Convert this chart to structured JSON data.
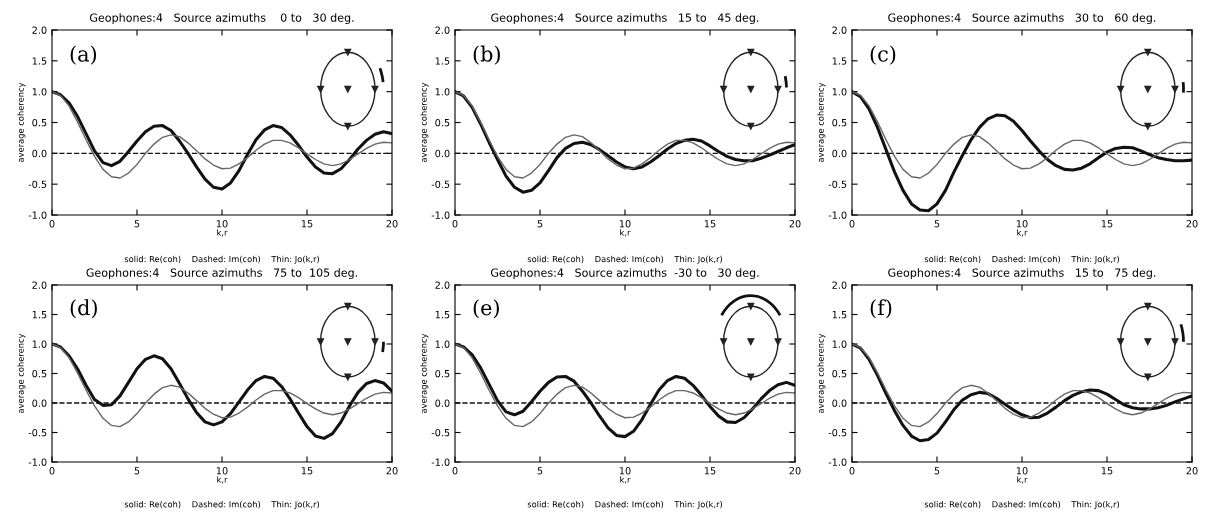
{
  "chart_data": [
    {
      "type": "line",
      "title": "Geophones:4   Source azimuths    0 to   30 deg.",
      "xlabel": "k,r",
      "ylabel": "average coherency",
      "annotations": [
        "(a)",
        "solid: Re(coh)    Dashed: Im(coh)    Thin: Jo(k,r)"
      ],
      "xlim": [
        0,
        20
      ],
      "ylim": [
        -1.0,
        2.0
      ],
      "xticks": [
        0,
        5,
        10,
        15,
        20
      ],
      "yticks": [
        {
          "value": -1.0,
          "label": "-1.0"
        },
        {
          "value": -0.5,
          "label": "-0.5"
        },
        {
          "value": 0.0,
          "label": "0.0"
        },
        {
          "value": 0.5,
          "label": "0.5"
        },
        {
          "value": 1.0,
          "label": "1.0"
        },
        {
          "value": 1.5,
          "label": "1.5"
        },
        {
          "value": 2.0,
          "label": "2.0"
        }
      ],
      "grid": false,
      "legend": false,
      "x": [
        0,
        0.5,
        1,
        1.5,
        2,
        2.5,
        3,
        3.5,
        4,
        4.5,
        5,
        5.5,
        6,
        6.5,
        7,
        7.5,
        8,
        8.5,
        9,
        9.5,
        10,
        10.5,
        11,
        11.5,
        12,
        12.5,
        13,
        13.5,
        14,
        14.5,
        15,
        15.5,
        16,
        16.5,
        17,
        17.5,
        18,
        18.5,
        19,
        19.5,
        20
      ],
      "series": [
        {
          "color": "#111111",
          "line_style": "solid",
          "values": [
            1.0,
            0.95,
            0.82,
            0.6,
            0.32,
            0.04,
            -0.15,
            -0.2,
            -0.13,
            0.03,
            0.2,
            0.35,
            0.44,
            0.45,
            0.37,
            0.2,
            0.0,
            -0.22,
            -0.42,
            -0.55,
            -0.58,
            -0.48,
            -0.28,
            -0.02,
            0.22,
            0.38,
            0.45,
            0.42,
            0.3,
            0.13,
            -0.06,
            -0.22,
            -0.32,
            -0.33,
            -0.25,
            -0.1,
            0.07,
            0.21,
            0.31,
            0.35,
            0.32
          ]
        },
        {
          "color": "#111111",
          "line_style": "dashed",
          "values": [
            0,
            0,
            0,
            0,
            0,
            0,
            0,
            0,
            0,
            0,
            0,
            0,
            0,
            0,
            0,
            0,
            0,
            0,
            0,
            0,
            0,
            0,
            0,
            0,
            0,
            0,
            0,
            0,
            0,
            0,
            0,
            0,
            0,
            0,
            0,
            0,
            0,
            0,
            0,
            0,
            0
          ]
        },
        {
          "color": "#666666",
          "line_style": "solid",
          "values": [
            1.0,
            0.94,
            0.77,
            0.51,
            0.22,
            -0.05,
            -0.26,
            -0.38,
            -0.4,
            -0.32,
            -0.18,
            0.0,
            0.15,
            0.26,
            0.3,
            0.27,
            0.17,
            0.04,
            -0.09,
            -0.19,
            -0.25,
            -0.24,
            -0.17,
            -0.07,
            0.05,
            0.15,
            0.21,
            0.21,
            0.17,
            0.09,
            -0.01,
            -0.1,
            -0.17,
            -0.2,
            -0.17,
            -0.1,
            -0.01,
            0.08,
            0.15,
            0.18,
            0.17
          ]
        }
      ]
    },
    {
      "type": "line",
      "title": "Geophones:4   Source azimuths   15 to   45 deg.",
      "xlabel": "k,r",
      "ylabel": "average coherency",
      "annotations": [
        "(b)",
        "solid: Re(coh)    Dashed: Im(coh)    Thin: Jo(k,r)"
      ],
      "xlim": [
        0,
        20
      ],
      "ylim": [
        -1.0,
        2.0
      ],
      "xticks": [
        0,
        5,
        10,
        15,
        20
      ],
      "yticks": [
        {
          "value": -1.0,
          "label": "-1.0"
        },
        {
          "value": -0.5,
          "label": "-0.5"
        },
        {
          "value": 0.0,
          "label": "0.0"
        },
        {
          "value": 0.5,
          "label": "0.5"
        },
        {
          "value": 1.0,
          "label": "1.0"
        },
        {
          "value": 1.5,
          "label": "1.5"
        },
        {
          "value": 2.0,
          "label": "2.0"
        }
      ],
      "grid": false,
      "legend": false,
      "x": [
        0,
        0.5,
        1,
        1.5,
        2,
        2.5,
        3,
        3.5,
        4,
        4.5,
        5,
        5.5,
        6,
        6.5,
        7,
        7.5,
        8,
        8.5,
        9,
        9.5,
        10,
        10.5,
        11,
        11.5,
        12,
        12.5,
        13,
        13.5,
        14,
        14.5,
        15,
        15.5,
        16,
        16.5,
        17,
        17.5,
        18,
        18.5,
        19,
        19.5,
        20
      ],
      "series": [
        {
          "color": "#111111",
          "line_style": "solid",
          "values": [
            1.0,
            0.93,
            0.75,
            0.48,
            0.18,
            -0.1,
            -0.37,
            -0.55,
            -0.63,
            -0.6,
            -0.48,
            -0.28,
            -0.07,
            0.08,
            0.16,
            0.18,
            0.14,
            0.06,
            -0.04,
            -0.14,
            -0.22,
            -0.25,
            -0.22,
            -0.14,
            -0.04,
            0.07,
            0.16,
            0.21,
            0.23,
            0.2,
            0.12,
            0.03,
            -0.05,
            -0.1,
            -0.12,
            -0.12,
            -0.08,
            -0.03,
            0.03,
            0.09,
            0.14
          ]
        },
        {
          "color": "#111111",
          "line_style": "dashed",
          "values": [
            0,
            0,
            0,
            0,
            0,
            0,
            0,
            0,
            0,
            0,
            0,
            0,
            0,
            0,
            0,
            0,
            0,
            0,
            0,
            0,
            0,
            0,
            0,
            0,
            0,
            0,
            0,
            0,
            0,
            0,
            0,
            0,
            0,
            0,
            0,
            0,
            0,
            0,
            0,
            0,
            0
          ]
        },
        {
          "color": "#666666",
          "line_style": "solid",
          "values": [
            1.0,
            0.94,
            0.77,
            0.51,
            0.22,
            -0.05,
            -0.26,
            -0.38,
            -0.4,
            -0.32,
            -0.18,
            0.0,
            0.15,
            0.26,
            0.3,
            0.27,
            0.17,
            0.04,
            -0.09,
            -0.19,
            -0.25,
            -0.24,
            -0.17,
            -0.07,
            0.05,
            0.15,
            0.21,
            0.21,
            0.17,
            0.09,
            -0.01,
            -0.1,
            -0.17,
            -0.2,
            -0.17,
            -0.1,
            -0.01,
            0.08,
            0.15,
            0.18,
            0.17
          ]
        }
      ]
    },
    {
      "type": "line",
      "title": "Geophones:4   Source azimuths   30 to   60 deg.",
      "xlabel": "k,r",
      "ylabel": "average coherency",
      "annotations": [
        "(c)",
        "solid: Re(coh)    Dashed: Im(coh)    Thin: Jo(k,r)"
      ],
      "xlim": [
        0,
        20
      ],
      "ylim": [
        -1.0,
        2.0
      ],
      "xticks": [
        0,
        5,
        10,
        15,
        20
      ],
      "yticks": [
        {
          "value": -1.0,
          "label": "-1.0"
        },
        {
          "value": -0.5,
          "label": "-0.5"
        },
        {
          "value": 0.0,
          "label": "0.0"
        },
        {
          "value": 0.5,
          "label": "0.5"
        },
        {
          "value": 1.0,
          "label": "1.0"
        },
        {
          "value": 1.5,
          "label": "1.5"
        },
        {
          "value": 2.0,
          "label": "2.0"
        }
      ],
      "grid": false,
      "legend": false,
      "x": [
        0,
        0.5,
        1,
        1.5,
        2,
        2.5,
        3,
        3.5,
        4,
        4.5,
        5,
        5.5,
        6,
        6.5,
        7,
        7.5,
        8,
        8.5,
        9,
        9.5,
        10,
        10.5,
        11,
        11.5,
        12,
        12.5,
        13,
        13.5,
        14,
        14.5,
        15,
        15.5,
        16,
        16.5,
        17,
        17.5,
        18,
        18.5,
        19,
        19.5,
        20
      ],
      "series": [
        {
          "color": "#111111",
          "line_style": "solid",
          "values": [
            1.0,
            0.92,
            0.72,
            0.42,
            0.06,
            -0.3,
            -0.6,
            -0.82,
            -0.92,
            -0.93,
            -0.82,
            -0.6,
            -0.3,
            -0.03,
            0.22,
            0.42,
            0.56,
            0.62,
            0.61,
            0.52,
            0.37,
            0.2,
            0.04,
            -0.1,
            -0.2,
            -0.26,
            -0.27,
            -0.24,
            -0.17,
            -0.07,
            0.02,
            0.08,
            0.1,
            0.09,
            0.04,
            -0.02,
            -0.07,
            -0.1,
            -0.12,
            -0.12,
            -0.11
          ]
        },
        {
          "color": "#111111",
          "line_style": "dashed",
          "values": [
            0,
            0,
            0,
            0,
            0,
            0,
            0,
            0,
            0,
            0,
            0,
            0,
            0,
            0,
            0,
            0,
            0,
            0,
            0,
            0,
            0,
            0,
            0,
            0,
            0,
            0,
            0,
            0,
            0,
            0,
            0,
            0,
            0,
            0,
            0,
            0,
            0,
            0,
            0,
            0,
            0
          ]
        },
        {
          "color": "#666666",
          "line_style": "solid",
          "values": [
            1.0,
            0.94,
            0.77,
            0.51,
            0.22,
            -0.05,
            -0.26,
            -0.38,
            -0.4,
            -0.32,
            -0.18,
            0.0,
            0.15,
            0.26,
            0.3,
            0.27,
            0.17,
            0.04,
            -0.09,
            -0.19,
            -0.25,
            -0.24,
            -0.17,
            -0.07,
            0.05,
            0.15,
            0.21,
            0.21,
            0.17,
            0.09,
            -0.01,
            -0.1,
            -0.17,
            -0.2,
            -0.17,
            -0.1,
            -0.01,
            0.08,
            0.15,
            0.18,
            0.17
          ]
        }
      ]
    },
    {
      "type": "line",
      "title": "Geophones:4   Source azimuths   75 to  105 deg.",
      "xlabel": "k,r",
      "ylabel": "average coherency",
      "annotations": [
        "(d)",
        "solid: Re(coh)    Dashed: Im(coh)    Thin: Jo(k,r)"
      ],
      "xlim": [
        0,
        20
      ],
      "ylim": [
        -1.0,
        2.0
      ],
      "xticks": [
        0,
        5,
        10,
        15,
        20
      ],
      "yticks": [
        {
          "value": -1.0,
          "label": "-1.0"
        },
        {
          "value": -0.5,
          "label": "-0.5"
        },
        {
          "value": 0.0,
          "label": "0.0"
        },
        {
          "value": 0.5,
          "label": "0.5"
        },
        {
          "value": 1.0,
          "label": "1.0"
        },
        {
          "value": 1.5,
          "label": "1.5"
        },
        {
          "value": 2.0,
          "label": "2.0"
        }
      ],
      "grid": false,
      "legend": false,
      "x": [
        0,
        0.5,
        1,
        1.5,
        2,
        2.5,
        3,
        3.5,
        4,
        4.5,
        5,
        5.5,
        6,
        6.5,
        7,
        7.5,
        8,
        8.5,
        9,
        9.5,
        10,
        10.5,
        11,
        11.5,
        12,
        12.5,
        13,
        13.5,
        14,
        14.5,
        15,
        15.5,
        16,
        16.5,
        17,
        17.5,
        18,
        18.5,
        19,
        19.5,
        20
      ],
      "series": [
        {
          "color": "#111111",
          "line_style": "solid",
          "values": [
            1.0,
            0.95,
            0.8,
            0.58,
            0.3,
            0.06,
            -0.04,
            -0.03,
            0.12,
            0.35,
            0.58,
            0.74,
            0.8,
            0.75,
            0.58,
            0.33,
            0.07,
            -0.16,
            -0.32,
            -0.37,
            -0.32,
            -0.18,
            0.02,
            0.22,
            0.38,
            0.45,
            0.42,
            0.28,
            0.07,
            -0.17,
            -0.4,
            -0.56,
            -0.6,
            -0.52,
            -0.32,
            -0.05,
            0.18,
            0.33,
            0.38,
            0.34,
            0.2
          ]
        },
        {
          "color": "#111111",
          "line_style": "dashed",
          "values": [
            0,
            0,
            0,
            0,
            0,
            0,
            0,
            0,
            0,
            0,
            0,
            0,
            0,
            0,
            0,
            0,
            0,
            0,
            0,
            0,
            0,
            0,
            0,
            0,
            0,
            0,
            0,
            0,
            0,
            0,
            0,
            0,
            0,
            0,
            0,
            0,
            0,
            0,
            0,
            0,
            0
          ]
        },
        {
          "color": "#666666",
          "line_style": "solid",
          "values": [
            1.0,
            0.94,
            0.77,
            0.51,
            0.22,
            -0.05,
            -0.26,
            -0.38,
            -0.4,
            -0.32,
            -0.18,
            0.0,
            0.15,
            0.26,
            0.3,
            0.27,
            0.17,
            0.04,
            -0.09,
            -0.19,
            -0.25,
            -0.24,
            -0.17,
            -0.07,
            0.05,
            0.15,
            0.21,
            0.21,
            0.17,
            0.09,
            -0.01,
            -0.1,
            -0.17,
            -0.2,
            -0.17,
            -0.1,
            -0.01,
            0.08,
            0.15,
            0.18,
            0.17
          ]
        }
      ]
    },
    {
      "type": "line",
      "title": "Geophones:4   Source azimuths  -30 to   30 deg.",
      "xlabel": "k,r",
      "ylabel": "average coherency",
      "annotations": [
        "(e)",
        "solid: Re(coh)    Dashed: Im(coh)    Thin: Jo(k,r)"
      ],
      "xlim": [
        0,
        20
      ],
      "ylim": [
        -1.0,
        2.0
      ],
      "xticks": [
        0,
        5,
        10,
        15,
        20
      ],
      "yticks": [
        {
          "value": -1.0,
          "label": "-1.0"
        },
        {
          "value": -0.5,
          "label": "-0.5"
        },
        {
          "value": 0.0,
          "label": "0.0"
        },
        {
          "value": 0.5,
          "label": "0.5"
        },
        {
          "value": 1.0,
          "label": "1.0"
        },
        {
          "value": 1.5,
          "label": "1.5"
        },
        {
          "value": 2.0,
          "label": "2.0"
        }
      ],
      "grid": false,
      "legend": false,
      "x": [
        0,
        0.5,
        1,
        1.5,
        2,
        2.5,
        3,
        3.5,
        4,
        4.5,
        5,
        5.5,
        6,
        6.5,
        7,
        7.5,
        8,
        8.5,
        9,
        9.5,
        10,
        10.5,
        11,
        11.5,
        12,
        12.5,
        13,
        13.5,
        14,
        14.5,
        15,
        15.5,
        16,
        16.5,
        17,
        17.5,
        18,
        18.5,
        19,
        19.5,
        20
      ],
      "series": [
        {
          "color": "#111111",
          "line_style": "solid",
          "values": [
            1.0,
            0.95,
            0.82,
            0.6,
            0.32,
            0.04,
            -0.15,
            -0.2,
            -0.14,
            0.02,
            0.2,
            0.35,
            0.44,
            0.45,
            0.37,
            0.2,
            0.0,
            -0.22,
            -0.42,
            -0.55,
            -0.57,
            -0.48,
            -0.28,
            -0.02,
            0.22,
            0.38,
            0.45,
            0.42,
            0.3,
            0.13,
            -0.06,
            -0.22,
            -0.32,
            -0.33,
            -0.25,
            -0.1,
            0.07,
            0.21,
            0.31,
            0.35,
            0.3
          ]
        },
        {
          "color": "#111111",
          "line_style": "dashed",
          "values": [
            0,
            0,
            0,
            0,
            0,
            0,
            0,
            0,
            0,
            0,
            0,
            0,
            0,
            0,
            0,
            0,
            0,
            0,
            0,
            0,
            0,
            0,
            0,
            0,
            0,
            0,
            0,
            0,
            0,
            0,
            0,
            0,
            0,
            0,
            0,
            0,
            0,
            0,
            0,
            0,
            0
          ]
        },
        {
          "color": "#666666",
          "line_style": "solid",
          "values": [
            1.0,
            0.94,
            0.77,
            0.51,
            0.22,
            -0.05,
            -0.26,
            -0.38,
            -0.4,
            -0.32,
            -0.18,
            0.0,
            0.15,
            0.26,
            0.3,
            0.27,
            0.17,
            0.04,
            -0.09,
            -0.19,
            -0.25,
            -0.24,
            -0.17,
            -0.07,
            0.05,
            0.15,
            0.21,
            0.21,
            0.17,
            0.09,
            -0.01,
            -0.1,
            -0.17,
            -0.2,
            -0.17,
            -0.1,
            -0.01,
            0.08,
            0.15,
            0.18,
            0.17
          ]
        }
      ]
    },
    {
      "type": "line",
      "title": "Geophones:4   Source azimuths   15 to   75 deg.",
      "xlabel": "k,r",
      "ylabel": "average coherency",
      "annotations": [
        "(f)",
        "solid: Re(coh)    Dashed: Im(coh)    Thin: Jo(k,r)"
      ],
      "xlim": [
        0,
        20
      ],
      "ylim": [
        -1.0,
        2.0
      ],
      "xticks": [
        0,
        5,
        10,
        15,
        20
      ],
      "yticks": [
        {
          "value": -1.0,
          "label": "-1.0"
        },
        {
          "value": -0.5,
          "label": "-0.5"
        },
        {
          "value": 0.0,
          "label": "0.0"
        },
        {
          "value": 0.5,
          "label": "0.5"
        },
        {
          "value": 1.0,
          "label": "1.0"
        },
        {
          "value": 1.5,
          "label": "1.5"
        },
        {
          "value": 2.0,
          "label": "2.0"
        }
      ],
      "grid": false,
      "legend": false,
      "x": [
        0,
        0.5,
        1,
        1.5,
        2,
        2.5,
        3,
        3.5,
        4,
        4.5,
        5,
        5.5,
        6,
        6.5,
        7,
        7.5,
        8,
        8.5,
        9,
        9.5,
        10,
        10.5,
        11,
        11.5,
        12,
        12.5,
        13,
        13.5,
        14,
        14.5,
        15,
        15.5,
        16,
        16.5,
        17,
        17.5,
        18,
        18.5,
        19,
        19.5,
        20
      ],
      "series": [
        {
          "color": "#111111",
          "line_style": "solid",
          "values": [
            1.0,
            0.93,
            0.74,
            0.47,
            0.16,
            -0.13,
            -0.38,
            -0.56,
            -0.64,
            -0.62,
            -0.51,
            -0.32,
            -0.11,
            0.05,
            0.14,
            0.18,
            0.16,
            0.08,
            -0.02,
            -0.12,
            -0.2,
            -0.25,
            -0.24,
            -0.17,
            -0.07,
            0.04,
            0.13,
            0.19,
            0.22,
            0.21,
            0.15,
            0.06,
            -0.03,
            -0.08,
            -0.1,
            -0.1,
            -0.08,
            -0.04,
            0.02,
            0.07,
            0.12
          ]
        },
        {
          "color": "#111111",
          "line_style": "dashed",
          "values": [
            0,
            0,
            0,
            0,
            0,
            0,
            0,
            0,
            0,
            0,
            0,
            0,
            0,
            0,
            0,
            0,
            0,
            0,
            0,
            0,
            0,
            0,
            0,
            0,
            0,
            0,
            0,
            0,
            0,
            0,
            0,
            0,
            0,
            0,
            0,
            0,
            0,
            0,
            0,
            0,
            0
          ]
        },
        {
          "color": "#666666",
          "line_style": "solid",
          "values": [
            1.0,
            0.94,
            0.77,
            0.51,
            0.22,
            -0.05,
            -0.26,
            -0.38,
            -0.4,
            -0.32,
            -0.18,
            0.0,
            0.15,
            0.26,
            0.3,
            0.27,
            0.17,
            0.04,
            -0.09,
            -0.19,
            -0.25,
            -0.24,
            -0.17,
            -0.07,
            0.05,
            0.15,
            0.21,
            0.21,
            0.17,
            0.09,
            -0.01,
            -0.1,
            -0.17,
            -0.2,
            -0.17,
            -0.1,
            -0.01,
            0.08,
            0.15,
            0.18,
            0.17
          ]
        }
      ]
    }
  ]
}
